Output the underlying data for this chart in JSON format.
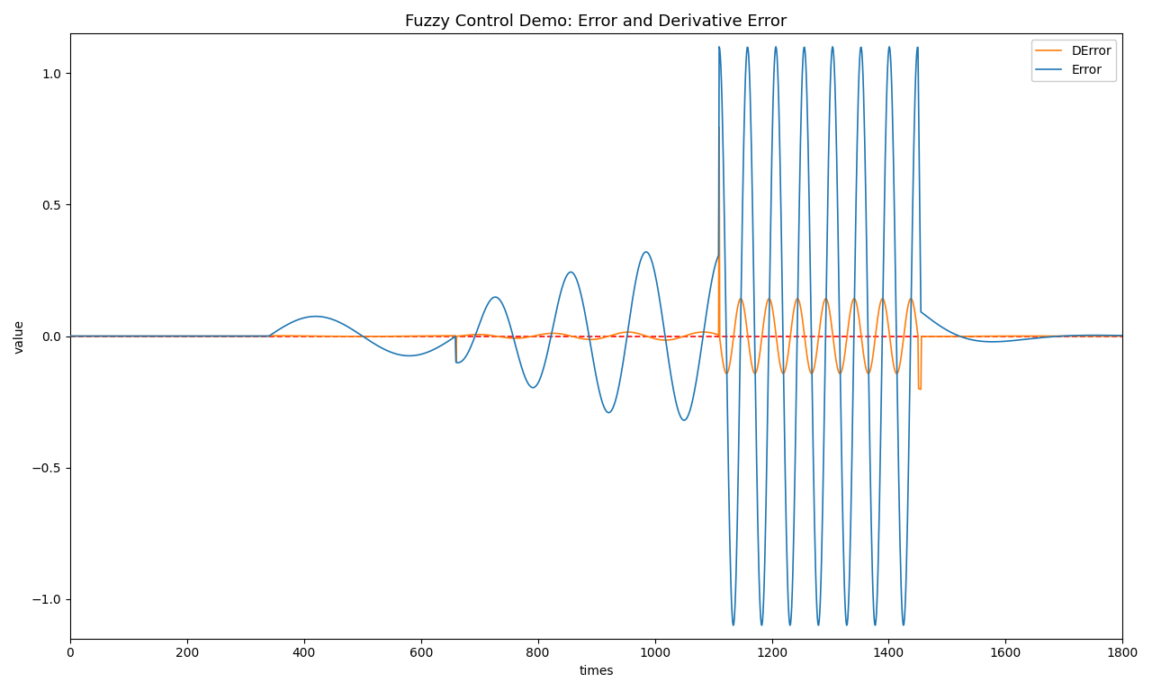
{
  "title": "Fuzzy Control Demo: Error and Derivative Error",
  "xlabel": "times",
  "ylabel": "value",
  "xlim": [
    0,
    1800
  ],
  "ylim": [
    -1.15,
    1.15
  ],
  "xticks": [
    0,
    200,
    400,
    600,
    800,
    1000,
    1200,
    1400,
    1600,
    1800
  ],
  "yticks": [
    -1.0,
    -0.5,
    0.0,
    0.5,
    1.0
  ],
  "error_color": "#1f77b4",
  "derror_color": "#ff7f0e",
  "ref_color": "red",
  "error_label": "Error",
  "derror_label": "DError",
  "background_color": "#ffffff",
  "title_fontsize": 13,
  "legend_loc": "upper right",
  "n_points": 1800,
  "dt": 1.0
}
